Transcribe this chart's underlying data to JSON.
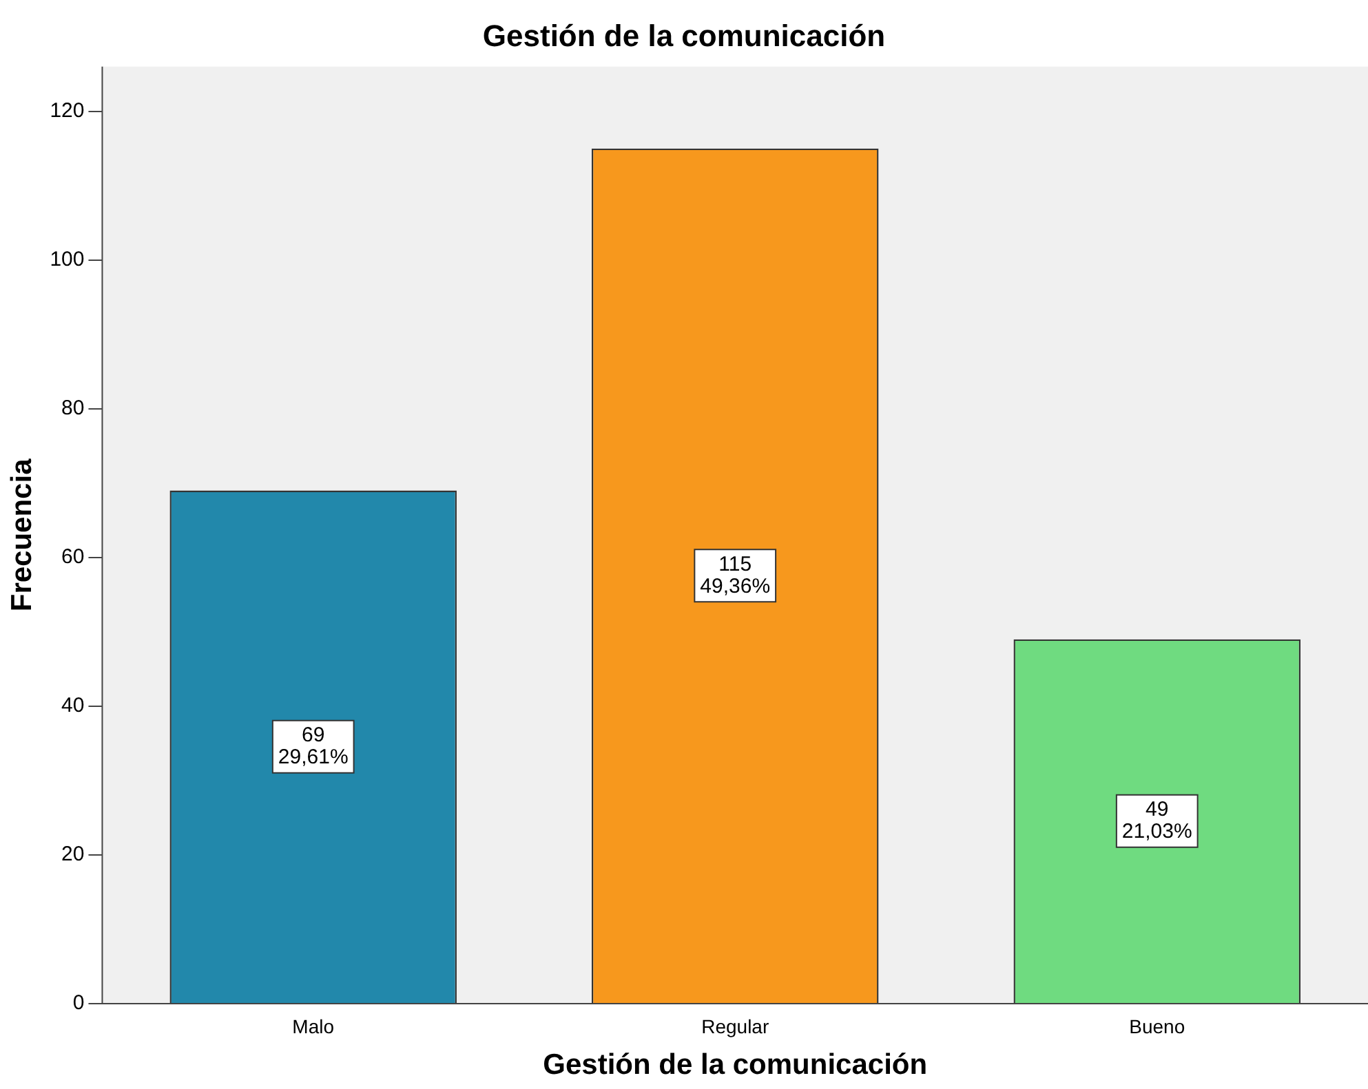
{
  "chart_data": {
    "type": "bar",
    "title": "Gestión de la comunicación",
    "xlabel": "Gestión de la comunicación",
    "ylabel": "Frecuencia",
    "categories": [
      "Malo",
      "Regular",
      "Bueno"
    ],
    "values": [
      69,
      115,
      49
    ],
    "colors": [
      "#2288ab",
      "#f7981d",
      "#6fdb80"
    ],
    "value_labels": [
      "69\n29,61%",
      "115\n49,36%",
      "49\n21,03%"
    ],
    "ylim": [
      0,
      126
    ],
    "yticks": [
      0,
      20,
      40,
      60,
      80,
      100,
      120
    ],
    "grid": false,
    "legend": false
  }
}
